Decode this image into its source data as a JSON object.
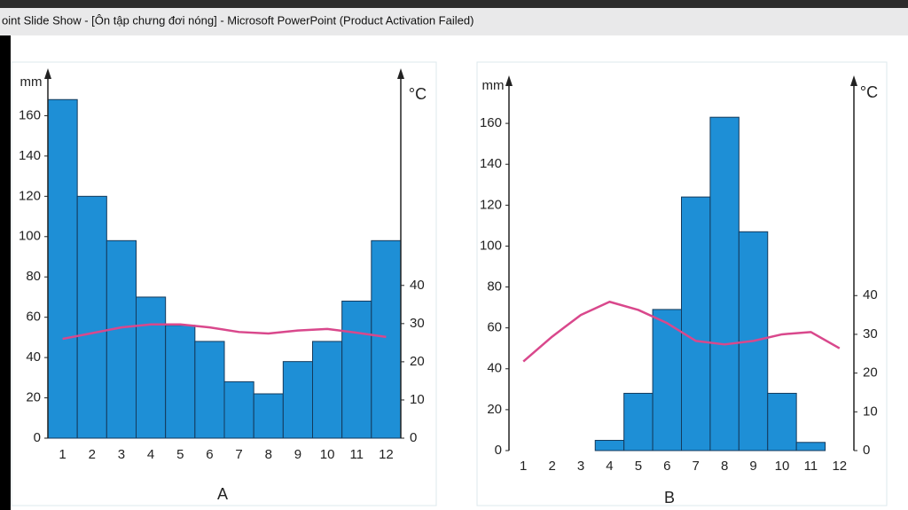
{
  "window_title": "oint Slide Show - [Ôn tập chưng đơi nóng] - Microsoft PowerPoint (Product Activation Failed)",
  "chart_data": [
    {
      "type": "bar",
      "caption": "A",
      "y_label": "mm",
      "y2_label": "°C",
      "categories": [
        "1",
        "2",
        "3",
        "4",
        "5",
        "6",
        "7",
        "8",
        "9",
        "10",
        "11",
        "12"
      ],
      "series": [
        {
          "type": "bar",
          "color": "#1e8fd6",
          "values": [
            168,
            120,
            98,
            70,
            56,
            48,
            28,
            22,
            38,
            48,
            68,
            98
          ]
        },
        {
          "type": "line",
          "axis": "y2",
          "color": "#d9488c",
          "values": [
            26,
            27.5,
            29,
            29.8,
            29.8,
            29,
            27.8,
            27.4,
            28.2,
            28.6,
            27.6,
            26.5
          ]
        }
      ],
      "ylim": [
        0,
        180
      ],
      "yticks": [
        0,
        20,
        40,
        60,
        80,
        100,
        120,
        140,
        160
      ],
      "y2lim": [
        0,
        95
      ],
      "y2ticks": [
        0,
        10,
        20,
        30,
        40
      ]
    },
    {
      "type": "bar",
      "caption": "B",
      "y_label": "mm",
      "y2_label": "°C",
      "categories": [
        "1",
        "2",
        "3",
        "4",
        "5",
        "6",
        "7",
        "8",
        "9",
        "10",
        "11",
        "12"
      ],
      "series": [
        {
          "type": "bar",
          "color": "#1e8fd6",
          "values": [
            0,
            0,
            0,
            5,
            28,
            69,
            124,
            163,
            107,
            28,
            4,
            0
          ]
        },
        {
          "type": "line",
          "axis": "y2",
          "color": "#d9488c",
          "values": [
            23,
            29.4,
            35,
            38.4,
            36.3,
            32.9,
            28.3,
            27.4,
            28.3,
            30,
            30.6,
            26.4
          ]
        }
      ],
      "ylim": [
        0,
        180
      ],
      "yticks": [
        0,
        20,
        40,
        60,
        80,
        100,
        120,
        140,
        160
      ],
      "y2lim": [
        0,
        95
      ],
      "y2ticks": [
        0,
        10,
        20,
        30,
        40
      ]
    }
  ]
}
